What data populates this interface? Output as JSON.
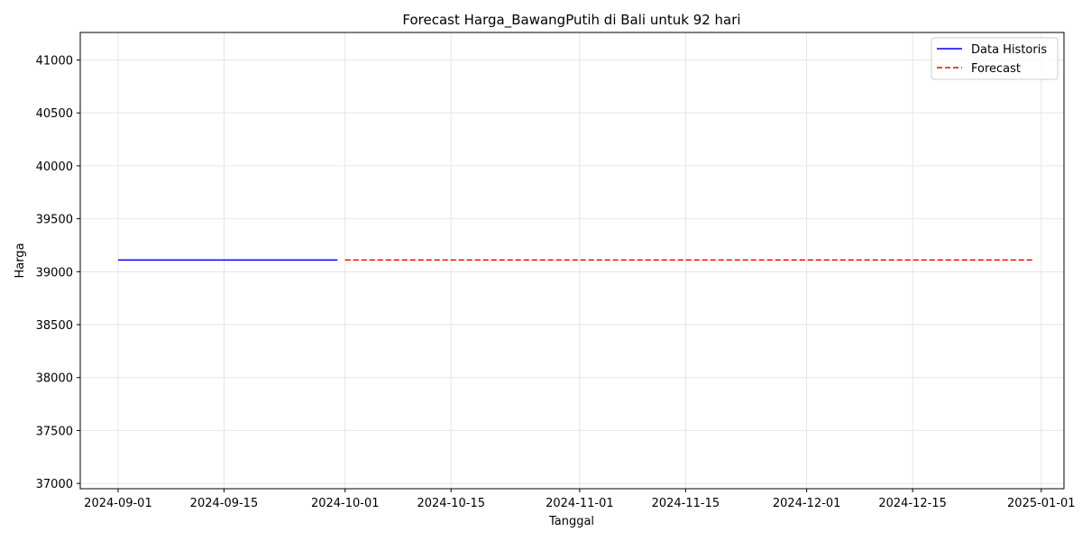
{
  "chart_data": {
    "type": "line",
    "title": "Forecast Harga_BawangPutih di Bali untuk 92 hari",
    "xlabel": "Tanggal",
    "ylabel": "Harga",
    "x_axis": "date",
    "xlim": [
      "2024-08-27",
      "2025-01-04"
    ],
    "ylim": [
      36950,
      41260
    ],
    "yticks": [
      37000,
      37500,
      38000,
      38500,
      39000,
      39500,
      40000,
      40500,
      41000
    ],
    "xticks": [
      "2024-09-01",
      "2024-09-15",
      "2024-10-01",
      "2024-10-15",
      "2024-11-01",
      "2024-11-15",
      "2024-12-01",
      "2024-12-15",
      "2025-01-01"
    ],
    "grid": true,
    "legend_position": "upper right",
    "series": [
      {
        "name": "Data Historis",
        "color": "#0000ff",
        "style": "solid",
        "points": [
          {
            "x": "2024-09-01",
            "y": 39110
          },
          {
            "x": "2024-09-30",
            "y": 39110
          }
        ]
      },
      {
        "name": "Forecast",
        "color": "#ff0000",
        "style": "dashed",
        "points": [
          {
            "x": "2024-10-01",
            "y": 39110
          },
          {
            "x": "2024-12-31",
            "y": 39110
          }
        ]
      }
    ]
  }
}
